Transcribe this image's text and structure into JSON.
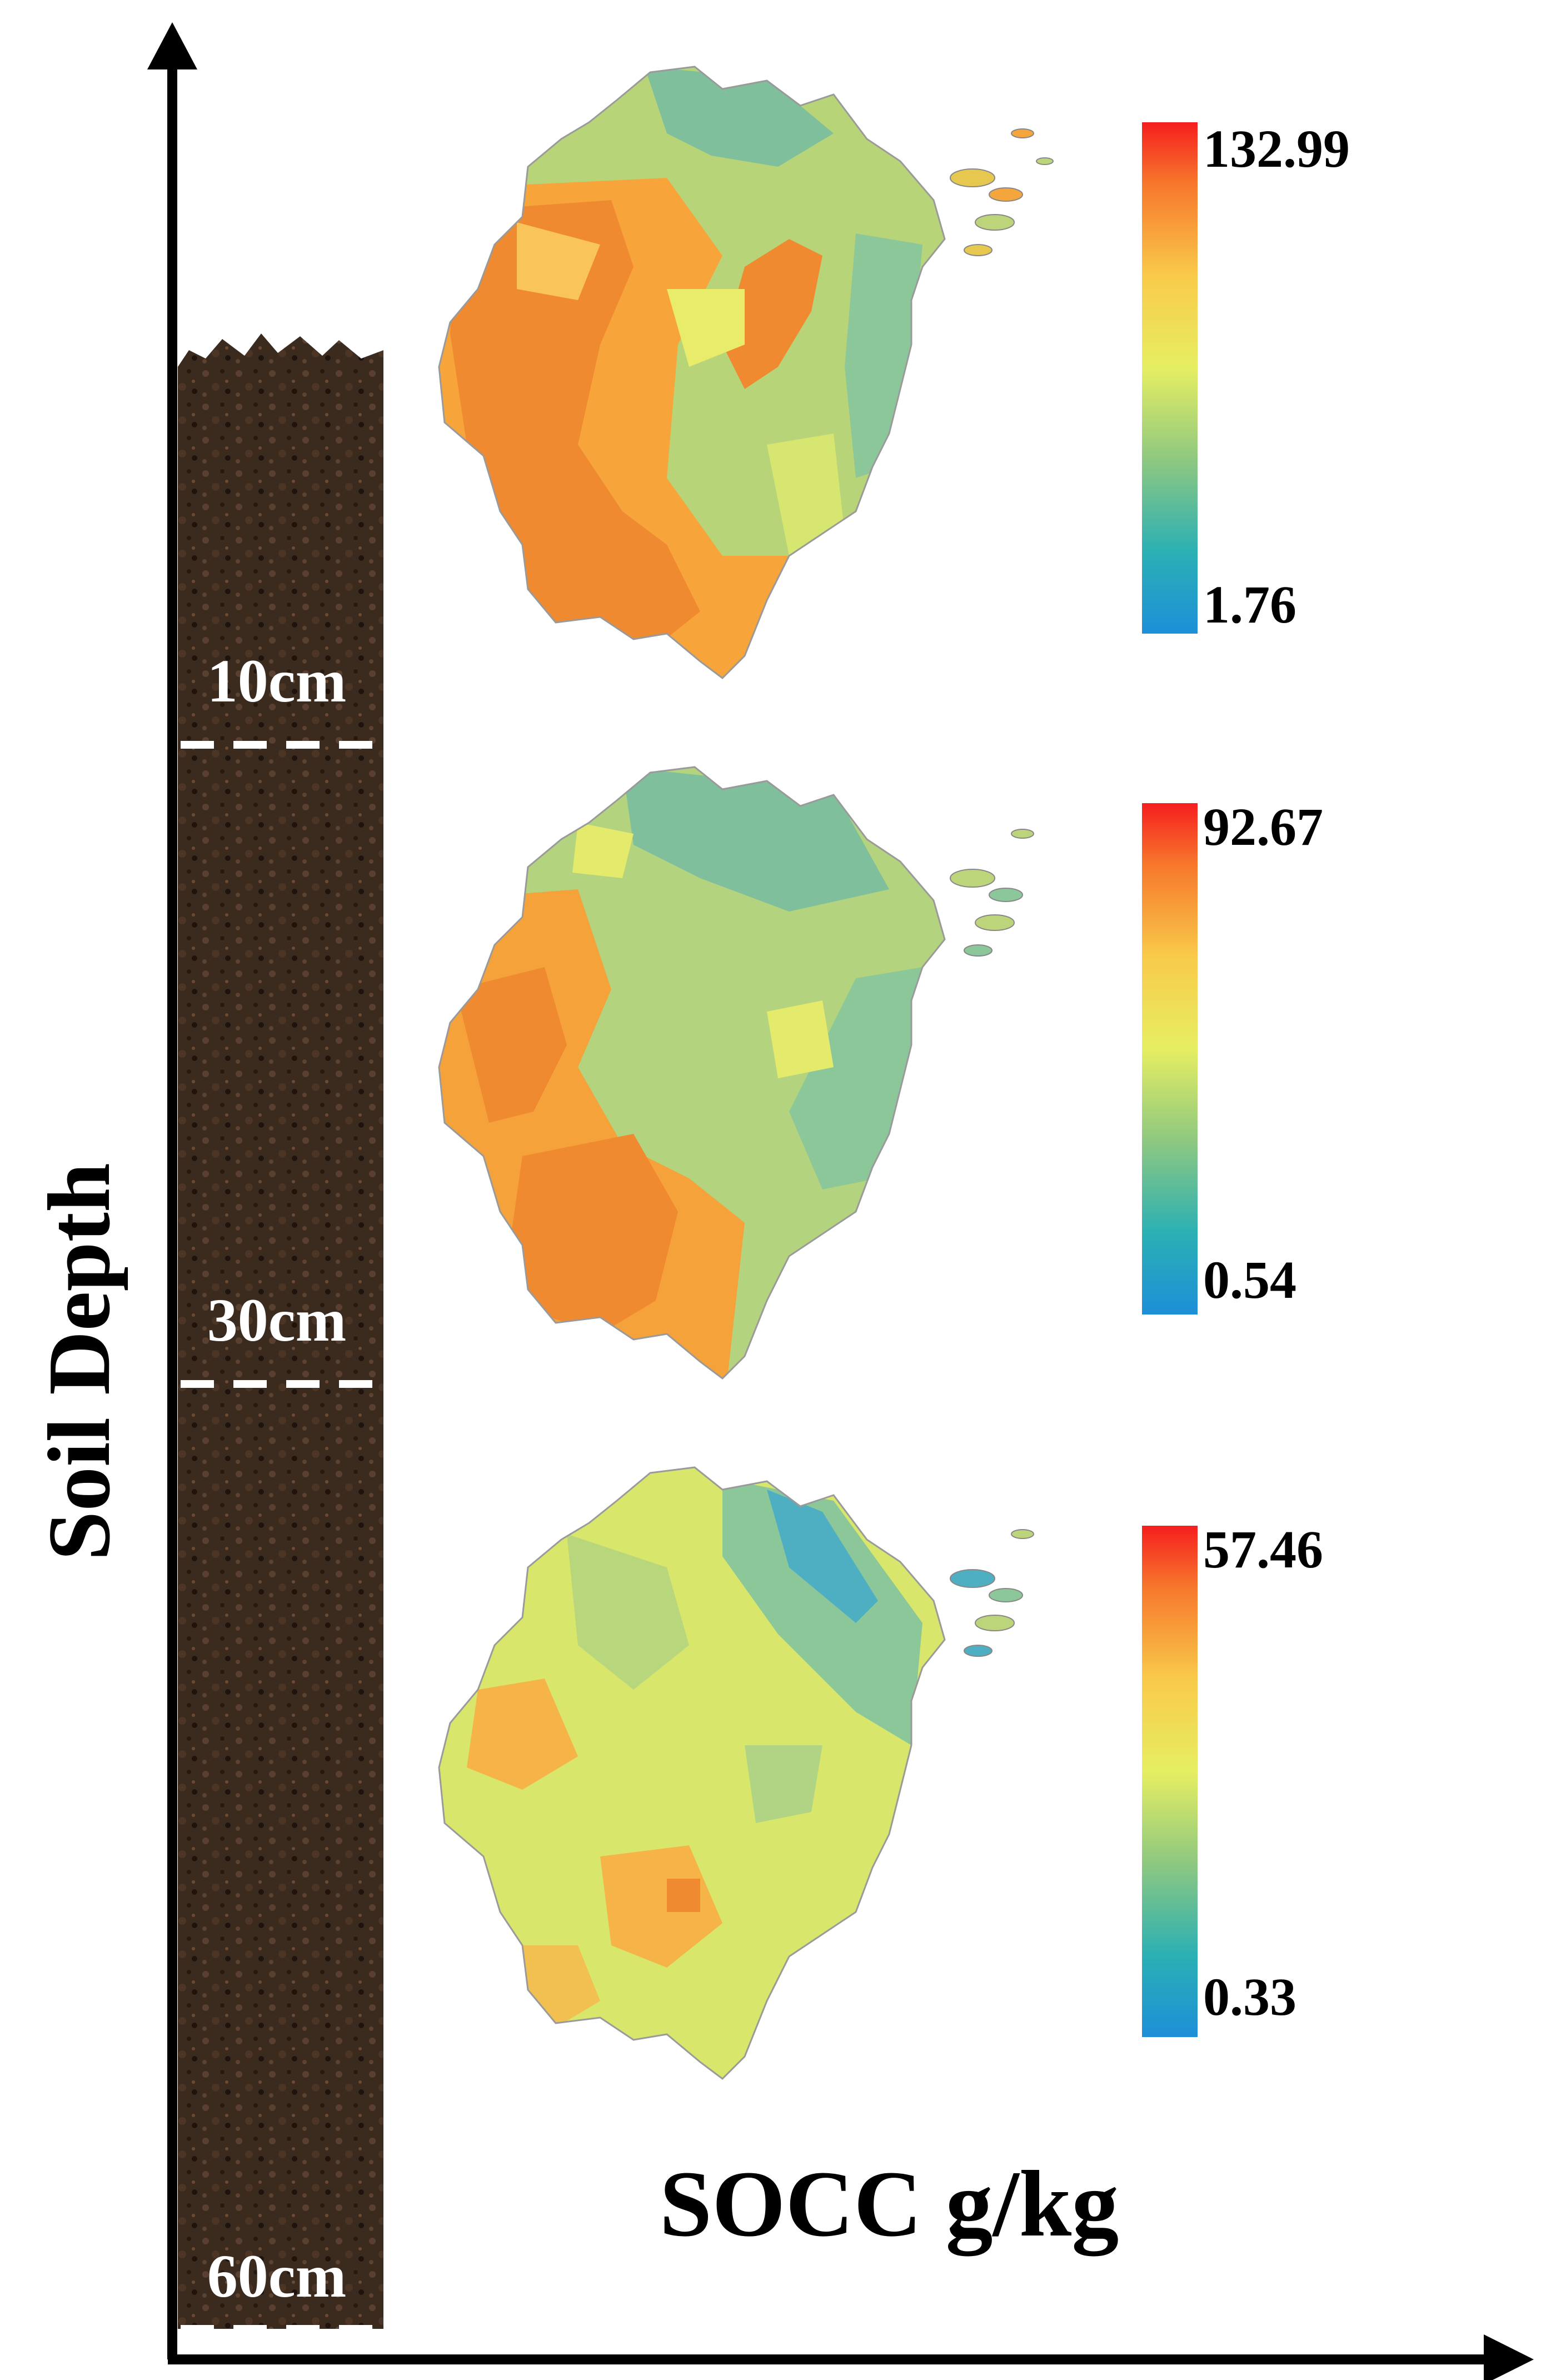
{
  "axes": {
    "y_title": "Soil Depth",
    "x_title": "SOCC g/kg"
  },
  "depth_labels": [
    "10cm",
    "30cm",
    "60cm"
  ],
  "panels": [
    {
      "layer": "10cm",
      "legend_max": "132.99",
      "legend_min": "1.76"
    },
    {
      "layer": "30cm",
      "legend_max": "92.67",
      "legend_min": "0.54"
    },
    {
      "layer": "60cm",
      "legend_max": "57.46",
      "legend_min": "0.33"
    }
  ],
  "colors": {
    "low": "#1d8fd8",
    "mid": "#e6ee62",
    "high": "#f51e1e",
    "soil": "#3a2a1f"
  }
}
